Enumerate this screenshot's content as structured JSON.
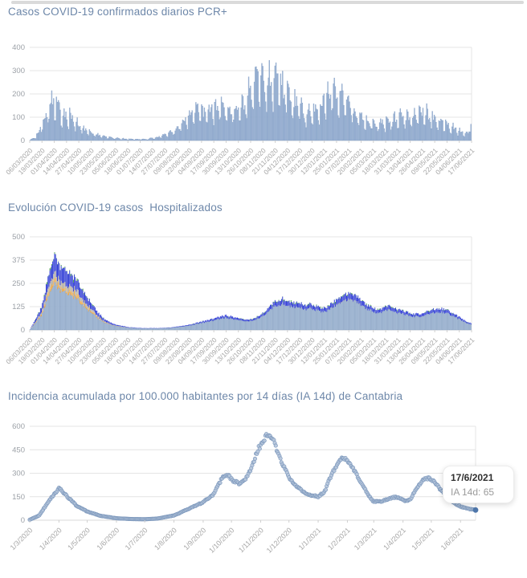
{
  "page": {
    "background": "#ffffff"
  },
  "chart_data": [
    {
      "id": "daily-pcr-cases",
      "type": "bar",
      "title": "Casos COVID-19 confirmados diarios PCR+",
      "ylim": [
        0,
        400
      ],
      "yticks": [
        0,
        100,
        200,
        300,
        400
      ],
      "days": 469,
      "x_tick_step_days": 13,
      "x_tick_labels": [
        "06/03/2020",
        "19/03/2020",
        "01/04/2020",
        "14/04/2020",
        "27/04/2020",
        "10/05/2020",
        "23/05/2020",
        "05/06/2020",
        "18/06/2020",
        "01/07/2020",
        "14/07/2020",
        "27/07/2020",
        "09/08/2020",
        "22/08/2020",
        "04/09/2020",
        "17/09/2020",
        "30/09/2020",
        "13/10/2020",
        "26/10/2020",
        "08/11/2020",
        "21/11/2020",
        "04/12/2020",
        "17/12/2020",
        "30/12/2020",
        "12/01/2021",
        "25/01/2021",
        "07/02/2021",
        "20/02/2021",
        "05/03/2021",
        "18/03/2021",
        "31/03/2021",
        "13/04/2021",
        "26/04/2021",
        "09/05/2021",
        "22/05/2021",
        "04/06/2021",
        "17/06/2021"
      ],
      "bar_color": "#a7bcd8",
      "bar_stroke": "#7d9ac4",
      "points_day_value": [
        [
          0,
          2
        ],
        [
          6,
          15
        ],
        [
          12,
          60
        ],
        [
          18,
          130
        ],
        [
          24,
          190
        ],
        [
          28,
          150
        ],
        [
          34,
          118
        ],
        [
          42,
          108
        ],
        [
          50,
          70
        ],
        [
          58,
          45
        ],
        [
          68,
          30
        ],
        [
          80,
          15
        ],
        [
          95,
          8
        ],
        [
          110,
          5
        ],
        [
          125,
          6
        ],
        [
          140,
          18
        ],
        [
          150,
          35
        ],
        [
          160,
          70
        ],
        [
          170,
          120
        ],
        [
          178,
          135
        ],
        [
          186,
          110
        ],
        [
          194,
          140
        ],
        [
          202,
          150
        ],
        [
          210,
          125
        ],
        [
          218,
          135
        ],
        [
          226,
          160
        ],
        [
          234,
          210
        ],
        [
          240,
          255
        ],
        [
          245,
          298
        ],
        [
          250,
          235
        ],
        [
          256,
          272
        ],
        [
          262,
          283
        ],
        [
          268,
          230
        ],
        [
          275,
          185
        ],
        [
          282,
          155
        ],
        [
          290,
          122
        ],
        [
          298,
          115
        ],
        [
          306,
          135
        ],
        [
          314,
          185
        ],
        [
          321,
          228
        ],
        [
          328,
          215
        ],
        [
          335,
          172
        ],
        [
          342,
          135
        ],
        [
          350,
          105
        ],
        [
          358,
          85
        ],
        [
          366,
          70
        ],
        [
          374,
          76
        ],
        [
          382,
          90
        ],
        [
          390,
          100
        ],
        [
          398,
          95
        ],
        [
          406,
          110
        ],
        [
          414,
          124
        ],
        [
          422,
          110
        ],
        [
          430,
          90
        ],
        [
          438,
          75
        ],
        [
          446,
          60
        ],
        [
          454,
          46
        ],
        [
          461,
          34
        ],
        [
          466,
          38
        ],
        [
          468,
          70
        ]
      ]
    },
    {
      "id": "hospitalizados",
      "type": "stacked-bar",
      "title": "Evolución COVID-19 casos  Hospitalizados",
      "ylim": [
        0,
        500
      ],
      "yticks": [
        0,
        125,
        250,
        375,
        500
      ],
      "days": 469,
      "x_tick_step_days": 13,
      "x_tick_labels": [
        "06/03/2020",
        "19/03/2020",
        "01/04/2020",
        "14/04/2020",
        "27/04/2020",
        "10/05/2020",
        "23/05/2020",
        "05/06/2020",
        "18/06/2020",
        "01/07/2020",
        "14/07/2020",
        "27/07/2020",
        "09/08/2020",
        "22/08/2020",
        "04/09/2020",
        "17/09/2020",
        "30/09/2020",
        "13/10/2020",
        "26/10/2020",
        "08/11/2020",
        "21/11/2020",
        "04/12/2020",
        "17/12/2020",
        "30/12/2020",
        "12/01/2021",
        "25/01/2021",
        "07/02/2021",
        "20/02/2021",
        "05/03/2021",
        "18/03/2021",
        "31/03/2021",
        "13/04/2021",
        "26/04/2021",
        "09/05/2021",
        "22/05/2021",
        "04/06/2021",
        "17/06/2021"
      ],
      "series_colors": {
        "light_blue": "#adc2db",
        "orange": "#eba43f",
        "gray": "#b5aea2",
        "blue": "#2b38d4",
        "green": "#3f9b41"
      },
      "total_points_day_value": [
        [
          0,
          4
        ],
        [
          12,
          120
        ],
        [
          20,
          300
        ],
        [
          26,
          390
        ],
        [
          32,
          345
        ],
        [
          40,
          310
        ],
        [
          48,
          278
        ],
        [
          56,
          215
        ],
        [
          64,
          150
        ],
        [
          72,
          92
        ],
        [
          80,
          55
        ],
        [
          90,
          30
        ],
        [
          105,
          15
        ],
        [
          120,
          10
        ],
        [
          135,
          10
        ],
        [
          150,
          14
        ],
        [
          162,
          22
        ],
        [
          172,
          32
        ],
        [
          180,
          42
        ],
        [
          190,
          55
        ],
        [
          200,
          70
        ],
        [
          208,
          80
        ],
        [
          214,
          72
        ],
        [
          222,
          62
        ],
        [
          230,
          58
        ],
        [
          238,
          62
        ],
        [
          246,
          85
        ],
        [
          254,
          125
        ],
        [
          262,
          160
        ],
        [
          268,
          168
        ],
        [
          274,
          158
        ],
        [
          280,
          150
        ],
        [
          286,
          145
        ],
        [
          292,
          132
        ],
        [
          298,
          140
        ],
        [
          304,
          128
        ],
        [
          310,
          118
        ],
        [
          316,
          125
        ],
        [
          322,
          150
        ],
        [
          328,
          175
        ],
        [
          334,
          192
        ],
        [
          340,
          200
        ],
        [
          346,
          185
        ],
        [
          352,
          160
        ],
        [
          358,
          135
        ],
        [
          364,
          118
        ],
        [
          370,
          112
        ],
        [
          376,
          122
        ],
        [
          382,
          128
        ],
        [
          388,
          118
        ],
        [
          394,
          105
        ],
        [
          400,
          96
        ],
        [
          406,
          88
        ],
        [
          412,
          86
        ],
        [
          418,
          94
        ],
        [
          424,
          104
        ],
        [
          430,
          112
        ],
        [
          436,
          115
        ],
        [
          442,
          108
        ],
        [
          448,
          95
        ],
        [
          454,
          75
        ],
        [
          460,
          55
        ],
        [
          464,
          45
        ],
        [
          468,
          38
        ]
      ]
    },
    {
      "id": "ia14d-cantabria",
      "type": "scatter",
      "title": "Incidencia acumulada por 100.000 habitantes por 14 días (IA 14d) de Cantabria",
      "ylim": [
        0,
        600
      ],
      "yticks": [
        0,
        150,
        300,
        450,
        600
      ],
      "days": 474,
      "x_tick_labels": [
        "1/3/2020",
        "1/4/2020",
        "1/5/2020",
        "1/6/2020",
        "1/7/2020",
        "1/8/2020",
        "1/9/2020",
        "1/10/2020",
        "1/11/2020",
        "1/12/2020",
        "1/1/2021",
        "1/2/2021",
        "1/3/2021",
        "1/4/2021",
        "1/5/2021",
        "1/6/2021"
      ],
      "x_tick_month_day_offsets": [
        0,
        31,
        61,
        92,
        122,
        153,
        184,
        214,
        245,
        275,
        306,
        337,
        365,
        396,
        426,
        457
      ],
      "dot_color": "#b5c6db",
      "dot_stroke": "#7d98bc",
      "highlight_dot_color": "#4e76aa",
      "points_day_value": [
        [
          0,
          3
        ],
        [
          10,
          30
        ],
        [
          20,
          120
        ],
        [
          31,
          205
        ],
        [
          40,
          150
        ],
        [
          50,
          90
        ],
        [
          61,
          55
        ],
        [
          75,
          28
        ],
        [
          92,
          12
        ],
        [
          110,
          7
        ],
        [
          122,
          6
        ],
        [
          135,
          10
        ],
        [
          153,
          30
        ],
        [
          168,
          70
        ],
        [
          184,
          115
        ],
        [
          195,
          165
        ],
        [
          205,
          280
        ],
        [
          210,
          290
        ],
        [
          215,
          255
        ],
        [
          222,
          235
        ],
        [
          228,
          255
        ],
        [
          235,
          335
        ],
        [
          243,
          460
        ],
        [
          251,
          545
        ],
        [
          258,
          515
        ],
        [
          264,
          420
        ],
        [
          270,
          335
        ],
        [
          276,
          265
        ],
        [
          285,
          205
        ],
        [
          295,
          165
        ],
        [
          306,
          150
        ],
        [
          313,
          185
        ],
        [
          320,
          290
        ],
        [
          329,
          395
        ],
        [
          334,
          400
        ],
        [
          341,
          355
        ],
        [
          350,
          250
        ],
        [
          358,
          175
        ],
        [
          364,
          120
        ],
        [
          372,
          118
        ],
        [
          380,
          135
        ],
        [
          388,
          148
        ],
        [
          393,
          140
        ],
        [
          398,
          120
        ],
        [
          404,
          135
        ],
        [
          412,
          220
        ],
        [
          418,
          258
        ],
        [
          424,
          268
        ],
        [
          430,
          240
        ],
        [
          436,
          195
        ],
        [
          442,
          150
        ],
        [
          450,
          110
        ],
        [
          458,
          85
        ],
        [
          466,
          72
        ],
        [
          473,
          65
        ]
      ],
      "tooltip": {
        "date": "17/6/2021",
        "label": "IA 14d: 65"
      }
    }
  ]
}
